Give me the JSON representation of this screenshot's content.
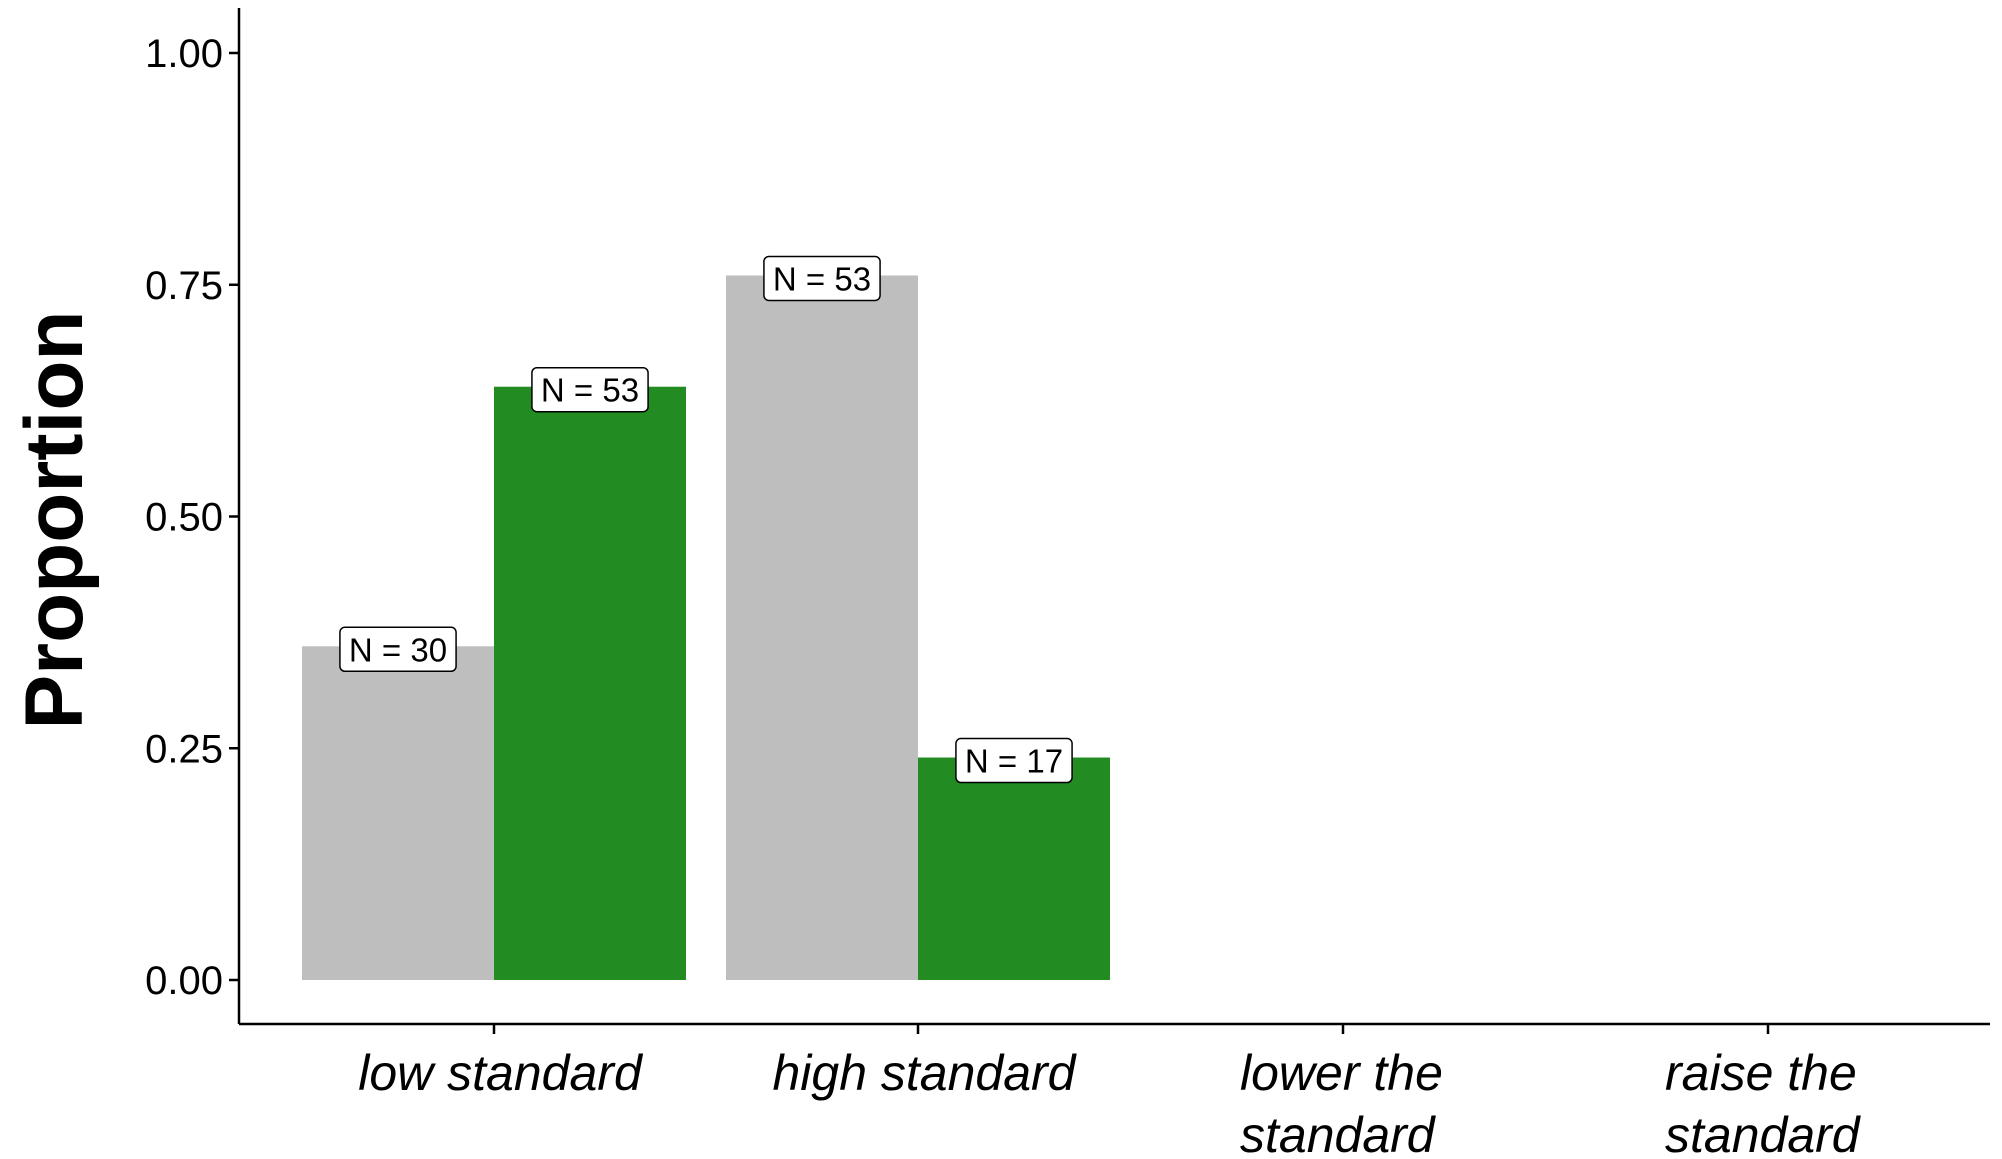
{
  "chart_data": {
    "type": "bar",
    "title": "",
    "xlabel": "",
    "ylabel": "Proportion",
    "ylim": [
      0,
      1.05
    ],
    "yticks": [
      "0.00",
      "0.25",
      "0.50",
      "0.75",
      "1.00"
    ],
    "categories": [
      [
        "low standard"
      ],
      [
        "high standard"
      ],
      [
        "lower the",
        "standard"
      ],
      [
        "raise the",
        "standard"
      ]
    ],
    "series": [
      {
        "color": "#bebebe",
        "values": [
          0.36,
          0.76,
          null,
          null
        ],
        "labels": [
          "N = 30",
          "N = 53",
          "",
          ""
        ]
      },
      {
        "color": "#228b22",
        "values": [
          0.64,
          0.24,
          null,
          null
        ],
        "labels": [
          "N = 53",
          "N = 17",
          "",
          ""
        ]
      }
    ],
    "grid": false,
    "legend": "none"
  }
}
